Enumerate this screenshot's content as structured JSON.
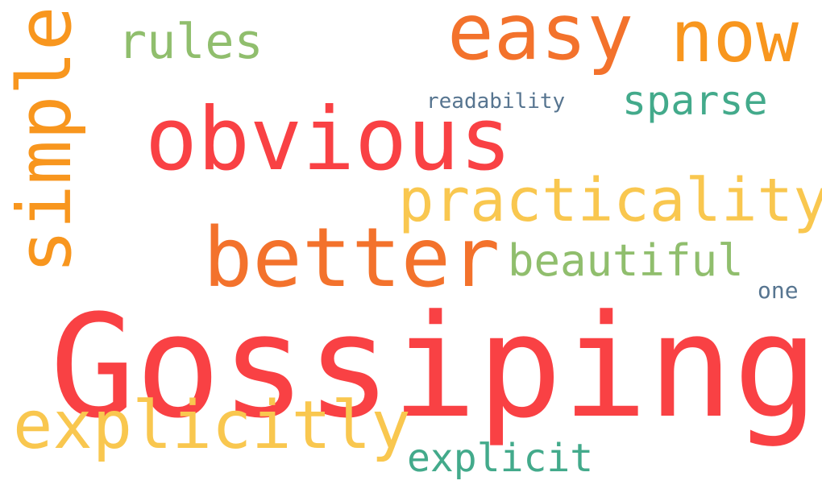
{
  "words": [
    {
      "text": "Gossiping",
      "weight": 1.0,
      "color": "#f94144",
      "rotated": false
    },
    {
      "text": "obvious",
      "weight": 0.62,
      "color": "#f94144",
      "rotated": false
    },
    {
      "text": "better",
      "weight": 0.55,
      "color": "#f3722c",
      "rotated": false
    },
    {
      "text": "easy",
      "weight": 0.52,
      "color": "#f3722c",
      "rotated": false
    },
    {
      "text": "now",
      "weight": 0.48,
      "color": "#f8961e",
      "rotated": false
    },
    {
      "text": "simple",
      "weight": 0.5,
      "color": "#f8961e",
      "rotated": true
    },
    {
      "text": "explicitly",
      "weight": 0.44,
      "color": "#f9c74f",
      "rotated": false
    },
    {
      "text": "practicality",
      "weight": 0.4,
      "color": "#f9c74f",
      "rotated": false
    },
    {
      "text": "rules",
      "weight": 0.32,
      "color": "#90be6d",
      "rotated": false
    },
    {
      "text": "beautiful",
      "weight": 0.3,
      "color": "#90be6d",
      "rotated": false
    },
    {
      "text": "sparse",
      "weight": 0.28,
      "color": "#43aa8b",
      "rotated": false
    },
    {
      "text": "explicit",
      "weight": 0.28,
      "color": "#43aa8b",
      "rotated": false
    },
    {
      "text": "readability",
      "weight": 0.16,
      "color": "#577590",
      "rotated": false
    },
    {
      "text": "one",
      "weight": 0.16,
      "color": "#577590",
      "rotated": false
    }
  ]
}
